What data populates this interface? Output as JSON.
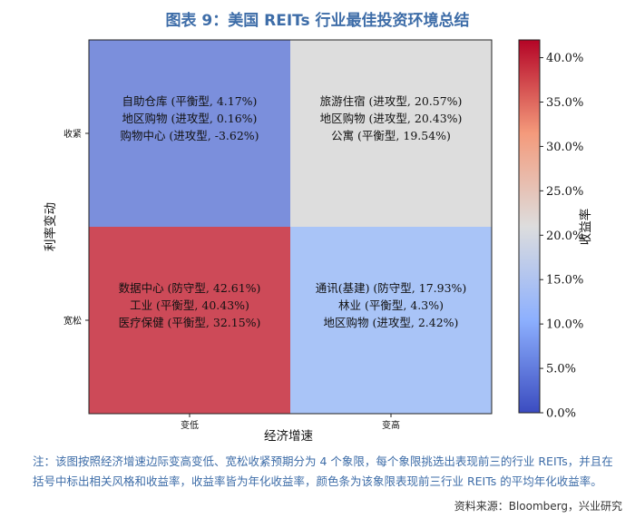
{
  "title": "图表 9：美国 REITs 行业最佳投资环境总结",
  "chart_data": {
    "type": "heatmap",
    "xlabel": "经济增速",
    "ylabel": "利率变动",
    "x_categories": [
      "变低",
      "变高"
    ],
    "y_categories": [
      "收紧",
      "宽松"
    ],
    "colorbar_label": "收益率",
    "colorbar_range": [
      0,
      42
    ],
    "colorbar_ticks": [
      "0.0%",
      "5.0%",
      "10.0%",
      "15.0%",
      "20.0%",
      "25.0%",
      "30.0%",
      "35.0%",
      "40.0%"
    ],
    "colorbar_tick_values": [
      0,
      5,
      10,
      15,
      20,
      25,
      30,
      35,
      40
    ],
    "cells": [
      {
        "x": "变低",
        "y": "收紧",
        "value": 0.24,
        "color": "#7b8fdc",
        "lines": [
          "自助仓库 (平衡型, 4.17%)",
          "地区购物 (进攻型, 0.16%)",
          "购物中心 (进攻型, -3.62%)"
        ]
      },
      {
        "x": "变高",
        "y": "收紧",
        "value": 20.18,
        "color": "#dddddd",
        "lines": [
          "旅游住宿 (进攻型, 20.57%)",
          "地区购物 (进攻型, 20.43%)",
          "公寓 (平衡型, 19.54%)"
        ]
      },
      {
        "x": "变低",
        "y": "宽松",
        "value": 38.4,
        "color": "#cd4a58",
        "lines": [
          "数据中心 (防守型, 42.61%)",
          "工业 (平衡型, 40.43%)",
          "医疗保健 (平衡型, 32.15%)"
        ]
      },
      {
        "x": "变高",
        "y": "宽松",
        "value": 8.22,
        "color": "#a9c4f7",
        "lines": [
          "通讯(基建) (防守型, 17.93%)",
          "林业 (平衡型, 4.3%)",
          "地区购物 (进攻型, 2.42%)"
        ]
      }
    ]
  },
  "note": "注：该图按照经济增速边际变高变低、宽松收紧预期分为 4 个象限，每个象限挑选出表现前三的行业 REITs，并且在括号中标出相关风格和收益率，收益率皆为年化收益率，颜色条为该象限表现前三行业 REITs 的平均年化收益率。",
  "source": "资料来源：Bloomberg，兴业研究"
}
